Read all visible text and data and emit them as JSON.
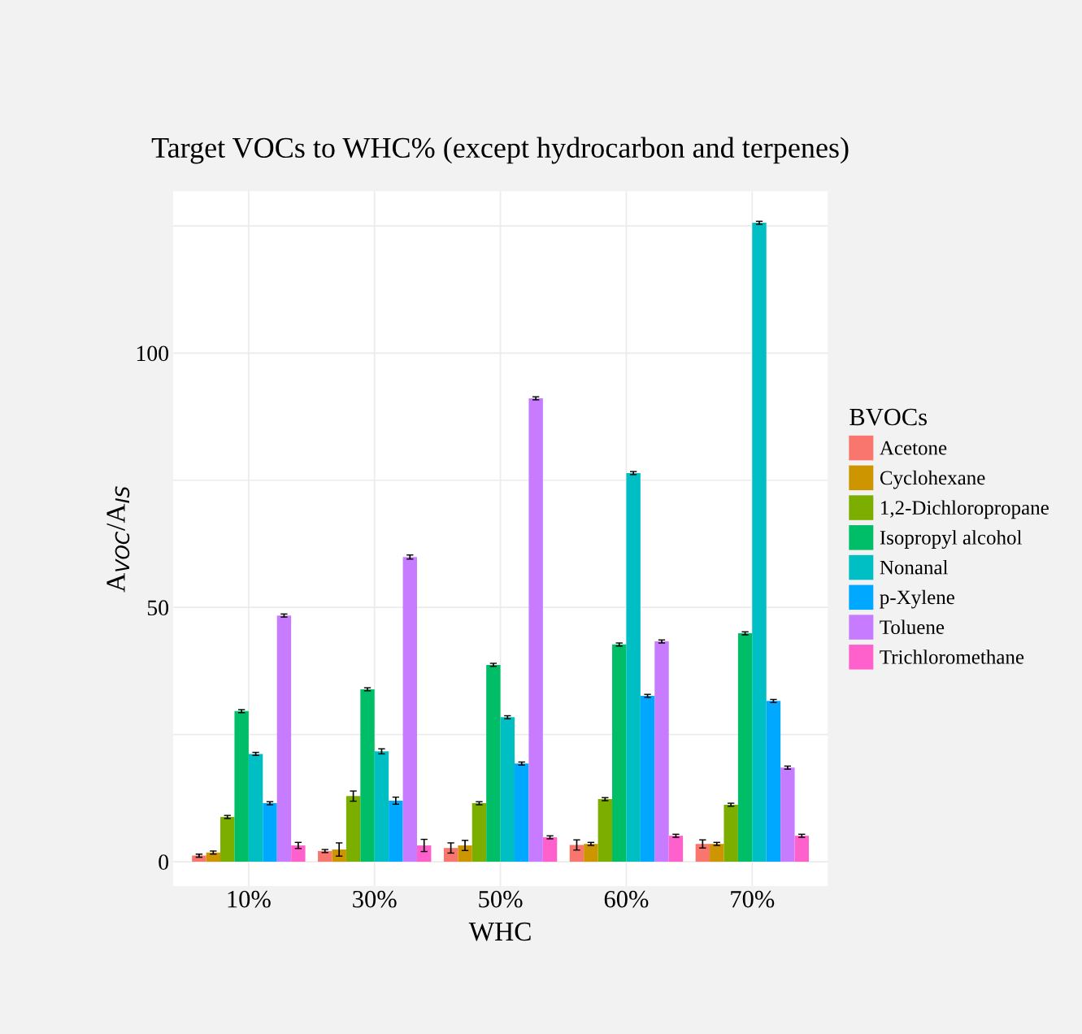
{
  "chart_data": {
    "type": "bar",
    "title": "Target VOCs to WHC% (except hydrocarbon and terpenes)",
    "xlabel": "WHC",
    "ylabel": "A$_{VOC}$/A$_{IS}$",
    "legend_title": "BVOCs",
    "legend": "right",
    "categories": [
      "10%",
      "30%",
      "50%",
      "60%",
      "70%"
    ],
    "series": [
      {
        "name": "Acetone",
        "color": "#f8766d",
        "values": [
          1.2,
          2.1,
          2.7,
          3.3,
          3.5
        ],
        "errors": [
          0.3,
          0.3,
          1.0,
          1.0,
          0.8
        ]
      },
      {
        "name": "Cyclohexane",
        "color": "#cd9600",
        "values": [
          1.8,
          2.4,
          3.2,
          3.5,
          3.5
        ],
        "errors": [
          0.3,
          1.3,
          1.0,
          0.3,
          0.3
        ]
      },
      {
        "name": "1,2-Dichloropropane",
        "color": "#7cae00",
        "values": [
          8.8,
          12.9,
          11.5,
          12.3,
          11.2
        ],
        "errors": [
          0.3,
          1.0,
          0.3,
          0.3,
          0.3
        ]
      },
      {
        "name": "Isopropyl alcohol",
        "color": "#00be67",
        "values": [
          29.6,
          33.9,
          38.7,
          42.7,
          44.9
        ],
        "errors": [
          0.3,
          0.3,
          0.3,
          0.3,
          0.3
        ]
      },
      {
        "name": "Nonanal",
        "color": "#00bfc4",
        "values": [
          21.2,
          21.7,
          28.4,
          76.4,
          125.6
        ],
        "errors": [
          0.3,
          0.5,
          0.3,
          0.3,
          0.3
        ]
      },
      {
        "name": "p-Xylene",
        "color": "#00a9ff",
        "values": [
          11.5,
          12.0,
          19.3,
          32.6,
          31.6
        ],
        "errors": [
          0.3,
          0.7,
          0.3,
          0.3,
          0.3
        ]
      },
      {
        "name": "Toluene",
        "color": "#c77cff",
        "values": [
          48.4,
          59.9,
          91.1,
          43.3,
          18.5
        ],
        "errors": [
          0.3,
          0.4,
          0.3,
          0.3,
          0.3
        ]
      },
      {
        "name": "Trichloromethane",
        "color": "#ff61cc",
        "values": [
          3.2,
          3.2,
          4.8,
          5.1,
          5.1
        ],
        "errors": [
          0.6,
          1.2,
          0.3,
          0.3,
          0.3
        ]
      }
    ],
    "ylim": [
      -4.8,
      131.8
    ],
    "yticks": [
      0,
      {
        "value": 25,
        "label": null
      },
      50,
      {
        "value": 75,
        "label": null
      },
      100,
      {
        "value": 125,
        "label": null
      }
    ],
    "grid": true
  }
}
